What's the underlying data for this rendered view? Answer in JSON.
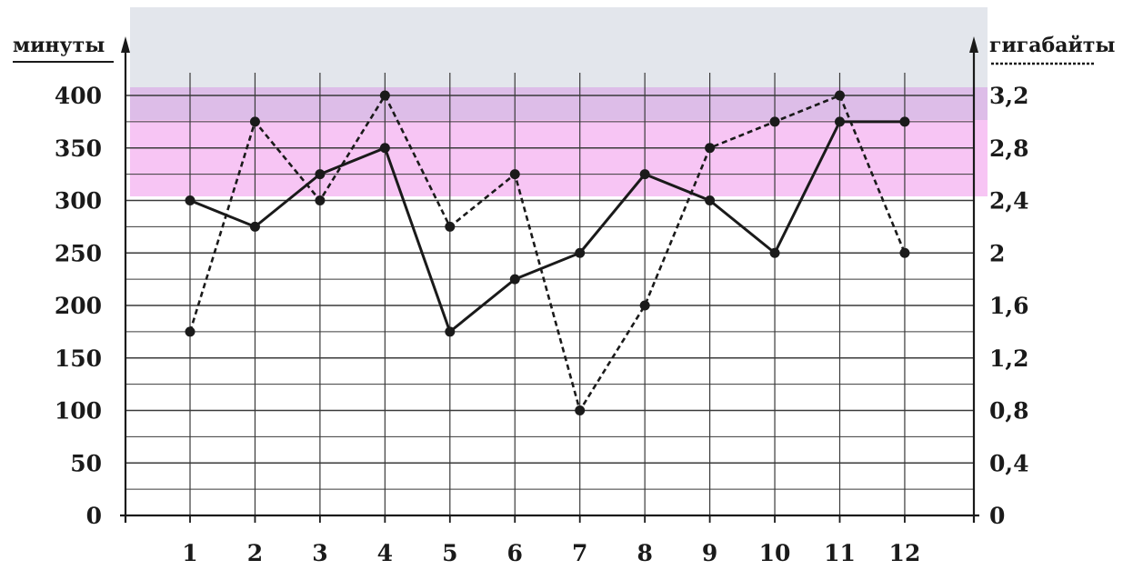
{
  "chart_data": {
    "type": "line",
    "categories": [
      "1",
      "2",
      "3",
      "4",
      "5",
      "6",
      "7",
      "8",
      "9",
      "10",
      "11",
      "12"
    ],
    "y_left": {
      "title": "минуты",
      "range": [
        0,
        400
      ],
      "ticks": [
        "0",
        "50",
        "100",
        "150",
        "200",
        "250",
        "300",
        "350",
        "400"
      ]
    },
    "y_right": {
      "title": "гигабайты",
      "range": [
        0,
        3.2
      ],
      "ticks": [
        "0",
        "0,4",
        "0,8",
        "1,2",
        "1,6",
        "2",
        "2,4",
        "2,8",
        "3,2"
      ]
    },
    "series": [
      {
        "axis": "left",
        "style": "solid",
        "color": "#1a1a1a",
        "values": [
          300,
          275,
          325,
          350,
          175,
          225,
          250,
          325,
          300,
          250,
          375,
          375
        ]
      },
      {
        "axis": "right",
        "style": "dashed",
        "color": "#1a1a1a",
        "values": [
          1.4,
          3.0,
          2.4,
          3.2,
          2.2,
          2.6,
          0.8,
          1.6,
          2.8,
          3.0,
          3.2,
          2.0
        ]
      }
    ],
    "grid": true,
    "highlight_colors": {
      "gray_band": "#e3e6ec",
      "lavender_band": "#d7b2e4",
      "pink_band": "#f6bff3"
    }
  }
}
